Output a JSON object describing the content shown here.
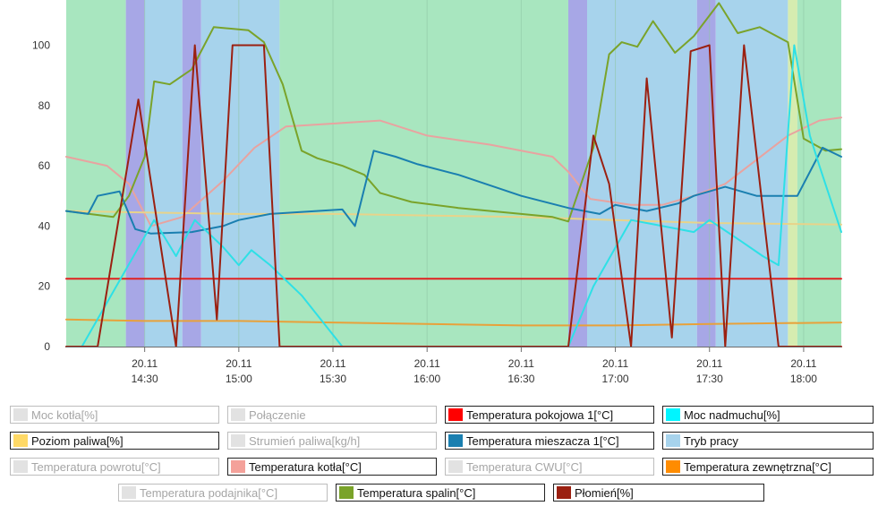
{
  "chart_data": {
    "type": "line",
    "ylim": [
      0,
      115
    ],
    "xlim": [
      "14:05",
      "18:12"
    ],
    "yticks": [
      0,
      20,
      40,
      60,
      80,
      100
    ],
    "xticks": [
      {
        "t": "14:30",
        "date": "20.11",
        "time": "14:30"
      },
      {
        "t": "15:00",
        "date": "20.11",
        "time": "15:00"
      },
      {
        "t": "15:30",
        "date": "20.11",
        "time": "15:30"
      },
      {
        "t": "16:00",
        "date": "20.11",
        "time": "16:00"
      },
      {
        "t": "16:30",
        "date": "20.11",
        "time": "16:30"
      },
      {
        "t": "17:00",
        "date": "20.11",
        "time": "17:00"
      },
      {
        "t": "17:30",
        "date": "20.11",
        "time": "17:30"
      },
      {
        "t": "18:00",
        "date": "20.11",
        "time": "18:00"
      }
    ],
    "grid": "vertical",
    "bands": [
      {
        "from": "14:05",
        "to": "14:24",
        "mode": "green"
      },
      {
        "from": "14:24",
        "to": "14:30",
        "mode": "purple"
      },
      {
        "from": "14:30",
        "to": "14:42",
        "mode": "blue"
      },
      {
        "from": "14:42",
        "to": "14:48",
        "mode": "purple"
      },
      {
        "from": "14:48",
        "to": "15:13",
        "mode": "blue"
      },
      {
        "from": "15:13",
        "to": "16:45",
        "mode": "green"
      },
      {
        "from": "16:45",
        "to": "16:51",
        "mode": "purple"
      },
      {
        "from": "16:51",
        "to": "17:26",
        "mode": "blue"
      },
      {
        "from": "17:26",
        "to": "17:32",
        "mode": "purple"
      },
      {
        "from": "17:32",
        "to": "17:55",
        "mode": "blue"
      },
      {
        "from": "17:55",
        "to": "17:58",
        "mode": "yellow"
      },
      {
        "from": "17:58",
        "to": "18:12",
        "mode": "green"
      }
    ],
    "series": [
      {
        "name": "Temperatura kotła[°C]",
        "color": "#e8a3a0",
        "points": [
          [
            "14:05",
            63
          ],
          [
            "14:18",
            60
          ],
          [
            "14:25",
            54
          ],
          [
            "14:32",
            40
          ],
          [
            "14:42",
            43
          ],
          [
            "14:55",
            55
          ],
          [
            "15:05",
            66
          ],
          [
            "15:15",
            73
          ],
          [
            "15:30",
            74
          ],
          [
            "15:45",
            75
          ],
          [
            "16:00",
            70
          ],
          [
            "16:20",
            67
          ],
          [
            "16:40",
            63
          ],
          [
            "16:45",
            58
          ],
          [
            "16:52",
            49
          ],
          [
            "17:05",
            47
          ],
          [
            "17:15",
            47
          ],
          [
            "17:25",
            50
          ],
          [
            "17:35",
            54
          ],
          [
            "17:45",
            62
          ],
          [
            "17:55",
            70
          ],
          [
            "18:05",
            75
          ],
          [
            "18:12",
            76
          ]
        ]
      },
      {
        "name": "Temperatura zewnętrzna[°C]",
        "color": "#e8a13a",
        "points": [
          [
            "14:05",
            9
          ],
          [
            "14:30",
            8.5
          ],
          [
            "15:00",
            8.5
          ],
          [
            "15:30",
            8
          ],
          [
            "16:00",
            7.5
          ],
          [
            "16:30",
            7
          ],
          [
            "17:00",
            7
          ],
          [
            "17:30",
            7.5
          ],
          [
            "18:12",
            8
          ]
        ]
      },
      {
        "name": "Poziom paliwa[%]",
        "color": "#e8d38a",
        "points": [
          [
            "14:05",
            45
          ],
          [
            "14:30",
            44.5
          ],
          [
            "15:00",
            44
          ],
          [
            "15:30",
            44
          ],
          [
            "16:00",
            43.5
          ],
          [
            "16:30",
            43
          ],
          [
            "17:00",
            42
          ],
          [
            "17:30",
            41
          ],
          [
            "18:12",
            40.5
          ]
        ]
      },
      {
        "name": "Temperatura pokojowa 1[°C]",
        "color": "#e02020",
        "points": [
          [
            "14:05",
            22.5
          ],
          [
            "14:30",
            22.5
          ],
          [
            "15:00",
            22.5
          ],
          [
            "15:30",
            22.5
          ],
          [
            "16:00",
            22.5
          ],
          [
            "16:30",
            22.5
          ],
          [
            "17:00",
            22.5
          ],
          [
            "17:30",
            22.5
          ],
          [
            "18:12",
            22.5
          ]
        ]
      },
      {
        "name": "Temperatura spalin[°C]",
        "color": "#7aa32a",
        "points": [
          [
            "14:05",
            45
          ],
          [
            "14:20",
            43
          ],
          [
            "14:25",
            50
          ],
          [
            "14:30",
            63
          ],
          [
            "14:33",
            88
          ],
          [
            "14:38",
            87
          ],
          [
            "14:45",
            92
          ],
          [
            "14:52",
            106
          ],
          [
            "15:03",
            105
          ],
          [
            "15:08",
            101
          ],
          [
            "15:14",
            87
          ],
          [
            "15:20",
            65
          ],
          [
            "15:25",
            62.5
          ],
          [
            "15:33",
            60
          ],
          [
            "15:40",
            57
          ],
          [
            "15:45",
            51
          ],
          [
            "15:55",
            48
          ],
          [
            "16:10",
            46
          ],
          [
            "16:30",
            44
          ],
          [
            "16:40",
            43
          ],
          [
            "16:45",
            41.5
          ],
          [
            "16:53",
            66
          ],
          [
            "16:58",
            97
          ],
          [
            "17:02",
            101
          ],
          [
            "17:07",
            99.5
          ],
          [
            "17:12",
            108
          ],
          [
            "17:19",
            97.5
          ],
          [
            "17:25",
            103
          ],
          [
            "17:33",
            114
          ],
          [
            "17:39",
            104
          ],
          [
            "17:46",
            106
          ],
          [
            "17:55",
            101
          ],
          [
            "18:00",
            69
          ],
          [
            "18:07",
            65
          ],
          [
            "18:12",
            65.5
          ]
        ]
      },
      {
        "name": "Temperatura mieszacza 1[°C]",
        "color": "#1a7fb0",
        "points": [
          [
            "14:05",
            45
          ],
          [
            "14:12",
            44
          ],
          [
            "14:15",
            50
          ],
          [
            "14:22",
            51.5
          ],
          [
            "14:27",
            39
          ],
          [
            "14:32",
            37.5
          ],
          [
            "14:45",
            38
          ],
          [
            "14:55",
            40
          ],
          [
            "15:00",
            42
          ],
          [
            "15:10",
            44
          ],
          [
            "15:33",
            45.5
          ],
          [
            "15:37",
            40
          ],
          [
            "15:43",
            65
          ],
          [
            "15:50",
            63
          ],
          [
            "15:57",
            60.5
          ],
          [
            "16:10",
            57
          ],
          [
            "16:30",
            50
          ],
          [
            "16:45",
            46
          ],
          [
            "16:55",
            44
          ],
          [
            "17:00",
            47
          ],
          [
            "17:10",
            45
          ],
          [
            "17:20",
            47.5
          ],
          [
            "17:25",
            50
          ],
          [
            "17:35",
            53
          ],
          [
            "17:45",
            50
          ],
          [
            "17:55",
            50
          ],
          [
            "17:58",
            50
          ],
          [
            "18:06",
            66
          ],
          [
            "18:12",
            63
          ]
        ]
      },
      {
        "name": "Moc nadmuchu[%]",
        "color": "#2ee0e6",
        "points": [
          [
            "14:05",
            0
          ],
          [
            "14:10",
            0
          ],
          [
            "14:33",
            42
          ],
          [
            "14:40",
            30
          ],
          [
            "14:46",
            42
          ],
          [
            "14:55",
            33
          ],
          [
            "15:00",
            27
          ],
          [
            "15:04",
            32
          ],
          [
            "15:10",
            27
          ],
          [
            "15:20",
            17
          ],
          [
            "15:33",
            0
          ],
          [
            "16:45",
            0
          ],
          [
            "16:53",
            20
          ],
          [
            "17:05",
            42
          ],
          [
            "17:15",
            40
          ],
          [
            "17:25",
            38
          ],
          [
            "17:30",
            42
          ],
          [
            "17:40",
            35
          ],
          [
            "17:47",
            30
          ],
          [
            "17:52",
            27
          ],
          [
            "17:57",
            100
          ],
          [
            "18:02",
            70
          ],
          [
            "18:05",
            60
          ],
          [
            "18:12",
            38
          ]
        ]
      },
      {
        "name": "Płomień[%]",
        "color": "#9b2011",
        "points": [
          [
            "14:05",
            0
          ],
          [
            "14:15",
            0
          ],
          [
            "14:28",
            82
          ],
          [
            "14:40",
            0
          ],
          [
            "14:46",
            100
          ],
          [
            "14:53",
            9
          ],
          [
            "14:58",
            100
          ],
          [
            "15:08",
            100
          ],
          [
            "15:13",
            0
          ],
          [
            "15:30",
            0
          ],
          [
            "16:45",
            0
          ],
          [
            "16:53",
            70
          ],
          [
            "16:58",
            54
          ],
          [
            "17:05",
            0
          ],
          [
            "17:10",
            89
          ],
          [
            "17:18",
            3
          ],
          [
            "17:24",
            98
          ],
          [
            "17:30",
            100
          ],
          [
            "17:35",
            0
          ],
          [
            "17:41",
            100
          ],
          [
            "17:52",
            0
          ],
          [
            "17:55",
            0
          ],
          [
            "18:12",
            0
          ]
        ]
      }
    ]
  },
  "colors": {
    "band_green": "#a8e6bf",
    "band_blue": "#a7d3ec",
    "band_purple": "#a7a7e6",
    "band_yellow": "#d6ecb0"
  },
  "legend": [
    {
      "label": "Moc kotła[%]",
      "color": "#e2e2e2",
      "enabled": false
    },
    {
      "label": "Połączenie",
      "color": "#e2e2e2",
      "enabled": false
    },
    {
      "label": "Temperatura pokojowa 1[°C]",
      "color": "#ff0000",
      "enabled": true
    },
    {
      "label": "Moc nadmuchu[%]",
      "color": "#00f5ff",
      "enabled": true
    },
    {
      "label": "Poziom paliwa[%]",
      "color": "#ffd966",
      "enabled": true
    },
    {
      "label": "Strumień paliwa[kg/h]",
      "color": "#e2e2e2",
      "enabled": false
    },
    {
      "label": "Temperatura mieszacza 1[°C]",
      "color": "#1a7fb0",
      "enabled": true
    },
    {
      "label": "Tryb pracy",
      "color": "#a7d3ec",
      "enabled": true
    },
    {
      "label": "Temperatura powrotu[°C]",
      "color": "#e2e2e2",
      "enabled": false
    },
    {
      "label": "Temperatura kotła[°C]",
      "color": "#f4a19a",
      "enabled": true
    },
    {
      "label": "Temperatura CWU[°C]",
      "color": "#e2e2e2",
      "enabled": false
    },
    {
      "label": "Temperatura zewnętrzna[°C]",
      "color": "#ff8c00",
      "enabled": true
    },
    {
      "label": "Temperatura podajnika[°C]",
      "color": "#e2e2e2",
      "enabled": false
    },
    {
      "label": "Temperatura spalin[°C]",
      "color": "#7aa32a",
      "enabled": true
    },
    {
      "label": "Płomień[%]",
      "color": "#9b2011",
      "enabled": true
    }
  ]
}
